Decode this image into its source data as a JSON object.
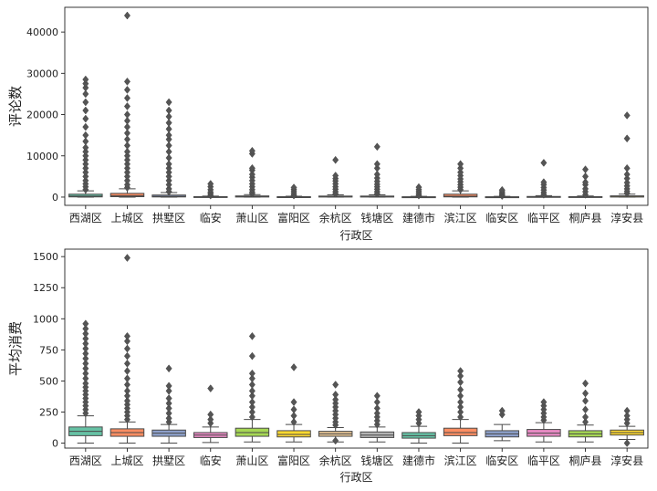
{
  "chart_data": [
    {
      "type": "box",
      "xlabel": "行政区",
      "ylabel": "评论数",
      "ylim": [
        -2000,
        46000
      ],
      "yticks": [
        0,
        10000,
        20000,
        30000,
        40000
      ],
      "categories": [
        "西湖区",
        "上城区",
        "拱墅区",
        "临安",
        "萧山区",
        "富阳区",
        "余杭区",
        "钱塘区",
        "建德市",
        "滨江区",
        "临安区",
        "临平区",
        "桐庐县",
        "淳安县"
      ],
      "colors": [
        "#66c2a5",
        "#fc8d62",
        "#8da0cb",
        "#e78ac3",
        "#a6d854",
        "#ffd92f",
        "#e5c494",
        "#b3b3b3",
        "#66c2a5",
        "#fc8d62",
        "#8da0cb",
        "#e78ac3",
        "#a6d854",
        "#ffd92f"
      ],
      "boxes": [
        {
          "q1": 50,
          "median": 250,
          "q3": 700,
          "whislo": 0,
          "whishi": 1500,
          "fliers": [
            1800,
            2500,
            3200,
            4000,
            5000,
            6000,
            7000,
            8000,
            9000,
            10000,
            11000,
            12000,
            13500,
            15000,
            17000,
            19000,
            21000,
            23000,
            25000,
            26500,
            27500,
            28500
          ]
        },
        {
          "q1": 100,
          "median": 350,
          "q3": 900,
          "whislo": 0,
          "whishi": 2000,
          "fliers": [
            2300,
            3000,
            4000,
            5000,
            6000,
            7000,
            8000,
            9000,
            10000,
            11000,
            12500,
            14000,
            15500,
            17000,
            18500,
            20000,
            22000,
            24000,
            26000,
            28000,
            44000
          ]
        },
        {
          "q1": 40,
          "median": 180,
          "q3": 500,
          "whislo": 0,
          "whishi": 1100,
          "fliers": [
            1300,
            2000,
            3000,
            4000,
            5000,
            6000,
            7000,
            8000,
            9500,
            11000,
            12500,
            14000,
            15000,
            16500,
            18000,
            19500,
            21000,
            23000
          ]
        },
        {
          "q1": 10,
          "median": 40,
          "q3": 120,
          "whislo": 0,
          "whishi": 250,
          "fliers": [
            400,
            800,
            1200,
            1800,
            2500,
            3200
          ]
        },
        {
          "q1": 20,
          "median": 100,
          "q3": 280,
          "whislo": 0,
          "whishi": 600,
          "fliers": [
            800,
            1200,
            1800,
            2500,
            3200,
            4000,
            4800,
            5500,
            6500,
            7000,
            10500,
            11200
          ]
        },
        {
          "q1": 10,
          "median": 40,
          "q3": 100,
          "whislo": 0,
          "whishi": 200,
          "fliers": [
            400,
            800,
            1300,
            1800,
            2300
          ]
        },
        {
          "q1": 20,
          "median": 80,
          "q3": 250,
          "whislo": 0,
          "whishi": 550,
          "fliers": [
            800,
            1300,
            1900,
            2500,
            3200,
            3900,
            4500,
            5200,
            9000
          ]
        },
        {
          "q1": 20,
          "median": 80,
          "q3": 250,
          "whislo": 0,
          "whishi": 550,
          "fliers": [
            800,
            1300,
            1900,
            2500,
            3100,
            3800,
            4600,
            5500,
            7000,
            8000,
            12200
          ]
        },
        {
          "q1": 10,
          "median": 30,
          "q3": 80,
          "whislo": 0,
          "whishi": 180,
          "fliers": [
            400,
            800,
            1300,
            1800,
            2400
          ]
        },
        {
          "q1": 50,
          "median": 200,
          "q3": 700,
          "whislo": 0,
          "whishi": 1500,
          "fliers": [
            1800,
            2400,
            3000,
            3700,
            4400,
            5200,
            6000,
            7000,
            8000
          ]
        },
        {
          "q1": 10,
          "median": 30,
          "q3": 80,
          "whislo": 0,
          "whishi": 180,
          "fliers": [
            300,
            600,
            900,
            1300,
            1700
          ]
        },
        {
          "q1": 10,
          "median": 50,
          "q3": 150,
          "whislo": 0,
          "whishi": 350,
          "fliers": [
            600,
            1100,
            1700,
            2300,
            3000,
            3600,
            8300
          ]
        },
        {
          "q1": 10,
          "median": 40,
          "q3": 120,
          "whislo": 0,
          "whishi": 280,
          "fliers": [
            600,
            1300,
            2000,
            3000,
            3600,
            5000,
            6700
          ]
        },
        {
          "q1": 20,
          "median": 80,
          "q3": 300,
          "whislo": 0,
          "whishi": 700,
          "fliers": [
            900,
            1400,
            2000,
            2700,
            3500,
            4500,
            5500,
            7000,
            14200,
            19800
          ]
        }
      ]
    },
    {
      "type": "box",
      "xlabel": "行政区",
      "ylabel": "平均消费",
      "ylim": [
        -40,
        1560
      ],
      "yticks": [
        0,
        250,
        500,
        750,
        1000,
        1250,
        1500
      ],
      "categories": [
        "西湖区",
        "上城区",
        "拱墅区",
        "临安",
        "萧山区",
        "富阳区",
        "余杭区",
        "钱塘区",
        "建德市",
        "滨江区",
        "临安区",
        "临平区",
        "桐庐县",
        "淳安县"
      ],
      "colors": [
        "#66c2a5",
        "#fc8d62",
        "#8da0cb",
        "#e78ac3",
        "#a6d854",
        "#ffd92f",
        "#e5c494",
        "#b3b3b3",
        "#66c2a5",
        "#fc8d62",
        "#8da0cb",
        "#e78ac3",
        "#a6d854",
        "#ffd92f"
      ],
      "boxes": [
        {
          "q1": 60,
          "median": 95,
          "q3": 130,
          "whislo": 0,
          "whishi": 220,
          "fliers": [
            240,
            270,
            300,
            330,
            360,
            390,
            420,
            450,
            480,
            520,
            560,
            600,
            640,
            680,
            720,
            760,
            800,
            840,
            880,
            920,
            960
          ]
        },
        {
          "q1": 55,
          "median": 85,
          "q3": 115,
          "whislo": 0,
          "whishi": 170,
          "fliers": [
            190,
            220,
            250,
            280,
            310,
            340,
            380,
            420,
            470,
            520,
            580,
            640,
            700,
            760,
            820,
            860,
            1490
          ]
        },
        {
          "q1": 55,
          "median": 80,
          "q3": 105,
          "whislo": 0,
          "whishi": 150,
          "fliers": [
            170,
            200,
            240,
            280,
            320,
            360,
            420,
            460,
            600
          ]
        },
        {
          "q1": 45,
          "median": 65,
          "q3": 85,
          "whislo": 5,
          "whishi": 130,
          "fliers": [
            160,
            190,
            230,
            440
          ]
        },
        {
          "q1": 55,
          "median": 85,
          "q3": 120,
          "whislo": 10,
          "whishi": 190,
          "fliers": [
            210,
            250,
            290,
            330,
            380,
            420,
            470,
            520,
            560,
            700,
            860
          ]
        },
        {
          "q1": 50,
          "median": 70,
          "q3": 100,
          "whislo": 10,
          "whishi": 150,
          "fliers": [
            170,
            220,
            270,
            330,
            610
          ]
        },
        {
          "q1": 55,
          "median": 75,
          "q3": 95,
          "whislo": 10,
          "whishi": 125,
          "fliers": [
            20,
            145,
            170,
            200,
            230,
            260,
            290,
            320,
            350,
            390,
            470
          ]
        },
        {
          "q1": 45,
          "median": 65,
          "q3": 90,
          "whislo": 10,
          "whishi": 130,
          "fliers": [
            150,
            180,
            210,
            240,
            280,
            330,
            380
          ]
        },
        {
          "q1": 40,
          "median": 60,
          "q3": 85,
          "whislo": 0,
          "whishi": 135,
          "fliers": [
            160,
            190,
            220,
            250
          ]
        },
        {
          "q1": 60,
          "median": 85,
          "q3": 120,
          "whislo": 0,
          "whishi": 190,
          "fliers": [
            210,
            250,
            290,
            330,
            380,
            430,
            490,
            540,
            580
          ]
        },
        {
          "q1": 50,
          "median": 75,
          "q3": 100,
          "whislo": 20,
          "whishi": 150,
          "fliers": [
            230,
            260
          ]
        },
        {
          "q1": 55,
          "median": 80,
          "q3": 110,
          "whislo": 10,
          "whishi": 165,
          "fliers": [
            185,
            210,
            240,
            270,
            300,
            330
          ]
        },
        {
          "q1": 50,
          "median": 75,
          "q3": 100,
          "whislo": 10,
          "whishi": 145,
          "fliers": [
            170,
            210,
            270,
            340,
            400,
            480
          ]
        },
        {
          "q1": 65,
          "median": 85,
          "q3": 105,
          "whislo": 30,
          "whishi": 135,
          "fliers": [
            0,
            160,
            190,
            220,
            260
          ]
        }
      ]
    }
  ]
}
